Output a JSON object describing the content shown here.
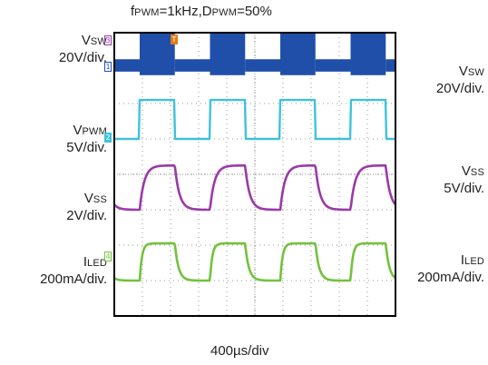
{
  "title": {
    "f": "f",
    "f_sub": "PWM",
    "mid": "=1kHz,D",
    "d_sub": "PWM",
    "end": "=50%"
  },
  "timebase": "400µs/div",
  "left_labels": [
    {
      "name_main": "V",
      "name_sub": "SW",
      "scale": "20V/div."
    },
    {
      "name_main": "V",
      "name_sub": "PWM",
      "scale": "5V/div."
    },
    {
      "name_main": "V",
      "name_sub": "SS",
      "scale": "2V/div."
    },
    {
      "name_main": "I",
      "name_sub": "LED",
      "scale": "200mA/div."
    }
  ],
  "right_labels": [
    {
      "name_main": "V",
      "name_sub": "SW",
      "scale": "20V/div."
    },
    {
      "name_main": "V",
      "name_sub": "SS",
      "scale": "5V/div."
    },
    {
      "name_main": "I",
      "name_sub": "LED",
      "scale": "200mA/div."
    }
  ],
  "channel_markers": [
    "3",
    "1",
    "2",
    "4"
  ],
  "trigger_marker": "T",
  "colors": {
    "vsw": "#1f4fa8",
    "vpwm": "#3ec2dc",
    "vss": "#9a3aa8",
    "iled": "#72c23e",
    "frame": "#000000",
    "grid": "#9a9a9a"
  },
  "chart_data": {
    "type": "line",
    "x_unit": "µs",
    "x_per_div": 400,
    "x_divisions": 10,
    "pwm_frequency_hz": 1000,
    "pwm_duty": 0.5,
    "series": [
      {
        "channel": "Vsw",
        "scale": "20V/div.",
        "low_div": 0,
        "high_div": 0.6,
        "burst_amplitude_div": 1.2
      },
      {
        "channel": "Vpwm",
        "scale": "5V/div.",
        "low_div": 0,
        "high_div": 1.1
      },
      {
        "channel": "Vss",
        "scale": "2V/div.",
        "low_div": 0,
        "high_div": 1.25
      },
      {
        "channel": "Iled",
        "scale": "200mA/div.",
        "low_div": 0,
        "high_div": 1.05
      }
    ]
  }
}
